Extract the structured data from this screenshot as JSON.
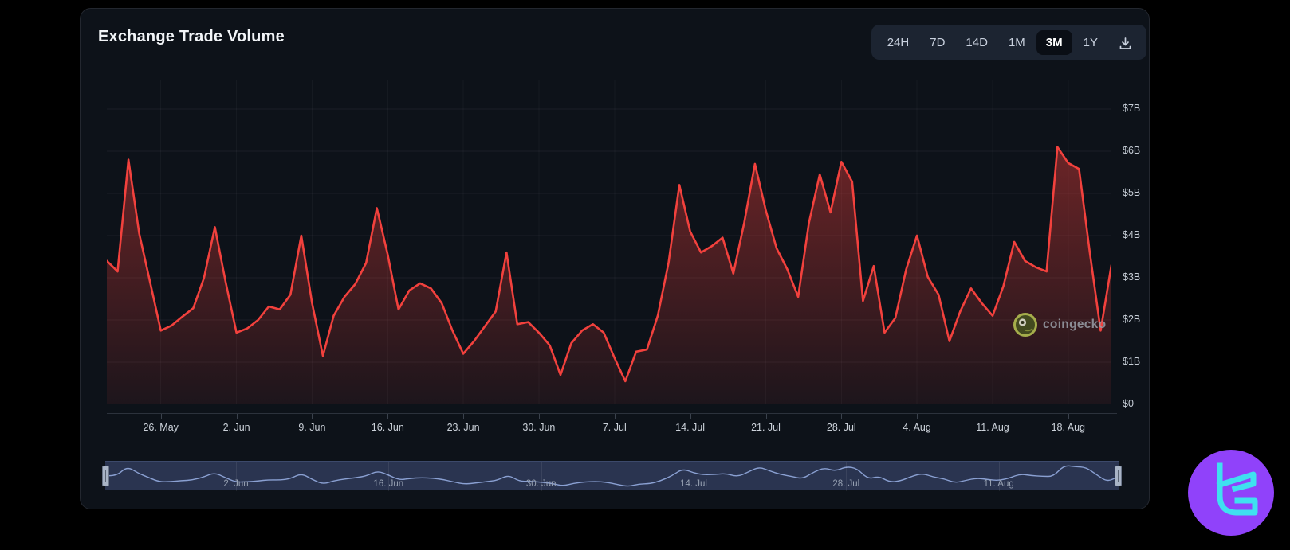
{
  "header": {
    "title": "Exchange Trade Volume"
  },
  "toolbar": {
    "ranges": [
      "24H",
      "7D",
      "14D",
      "1M",
      "3M",
      "1Y"
    ],
    "active_range": "3M",
    "download_icon": "download-icon"
  },
  "chart_data": {
    "type": "area",
    "title": "Exchange Trade Volume",
    "unit": "USD billions per day",
    "ylim": [
      0,
      7.7
    ],
    "grid": true,
    "y_ticks": [
      {
        "label": "$7B",
        "value": 7
      },
      {
        "label": "$6B",
        "value": 6
      },
      {
        "label": "$5B",
        "value": 5
      },
      {
        "label": "$4B",
        "value": 4
      },
      {
        "label": "$3B",
        "value": 3
      },
      {
        "label": "$2B",
        "value": 2
      },
      {
        "label": "$1B",
        "value": 1
      },
      {
        "label": "$0",
        "value": 0
      }
    ],
    "x_ticks": [
      {
        "label": "26. May",
        "index": 5
      },
      {
        "label": "2. Jun",
        "index": 12
      },
      {
        "label": "9. Jun",
        "index": 19
      },
      {
        "label": "16. Jun",
        "index": 26
      },
      {
        "label": "23. Jun",
        "index": 33
      },
      {
        "label": "30. Jun",
        "index": 40
      },
      {
        "label": "7. Jul",
        "index": 47
      },
      {
        "label": "14. Jul",
        "index": 54
      },
      {
        "label": "21. Jul",
        "index": 61
      },
      {
        "label": "28. Jul",
        "index": 68
      },
      {
        "label": "4. Aug",
        "index": 75
      },
      {
        "label": "11. Aug",
        "index": 82
      },
      {
        "label": "18. Aug",
        "index": 89
      }
    ],
    "values": [
      3.4,
      3.15,
      5.8,
      4.05,
      2.9,
      1.75,
      1.87,
      2.08,
      2.28,
      3.0,
      4.2,
      2.9,
      1.7,
      1.8,
      2.0,
      2.32,
      2.25,
      2.6,
      4.0,
      2.4,
      1.15,
      2.1,
      2.55,
      2.85,
      3.35,
      4.65,
      3.55,
      2.25,
      2.7,
      2.87,
      2.75,
      2.4,
      1.75,
      1.2,
      1.5,
      1.85,
      2.2,
      3.6,
      1.9,
      1.95,
      1.7,
      1.4,
      0.7,
      1.45,
      1.75,
      1.9,
      1.7,
      1.1,
      0.55,
      1.25,
      1.3,
      2.1,
      3.35,
      5.2,
      4.1,
      3.6,
      3.75,
      3.95,
      3.1,
      4.3,
      5.7,
      4.6,
      3.7,
      3.2,
      2.55,
      4.3,
      5.45,
      4.55,
      5.75,
      5.28,
      2.45,
      3.28,
      1.7,
      2.05,
      3.2,
      4.0,
      3.02,
      2.6,
      1.5,
      2.2,
      2.75,
      2.4,
      2.1,
      2.8,
      3.85,
      3.4,
      3.25,
      3.15,
      6.1,
      5.72,
      5.58,
      3.6,
      1.75,
      3.3
    ],
    "navigator": {
      "labels": [
        {
          "label": "2. Jun",
          "index": 12
        },
        {
          "label": "16. Jun",
          "index": 26
        },
        {
          "label": "30. Jun",
          "index": 40
        },
        {
          "label": "14. Jul",
          "index": 54
        },
        {
          "label": "28. Jul",
          "index": 68
        },
        {
          "label": "11. Aug",
          "index": 82
        }
      ]
    }
  },
  "watermark": {
    "text": "coingecko",
    "icon": "coingecko-gecko-icon"
  },
  "colors": {
    "page_bg": "#000000",
    "card_bg": "#0d1219",
    "line": "#f2413d",
    "area_top": "rgba(240,62,58,0.42)",
    "area_bottom": "rgba(240,62,58,0.07)",
    "nav_bg": "#2a3450",
    "nav_line": "#8aa0d2",
    "accent_purple": "#9042fa",
    "accent_cyan": "#3fe0f0"
  }
}
